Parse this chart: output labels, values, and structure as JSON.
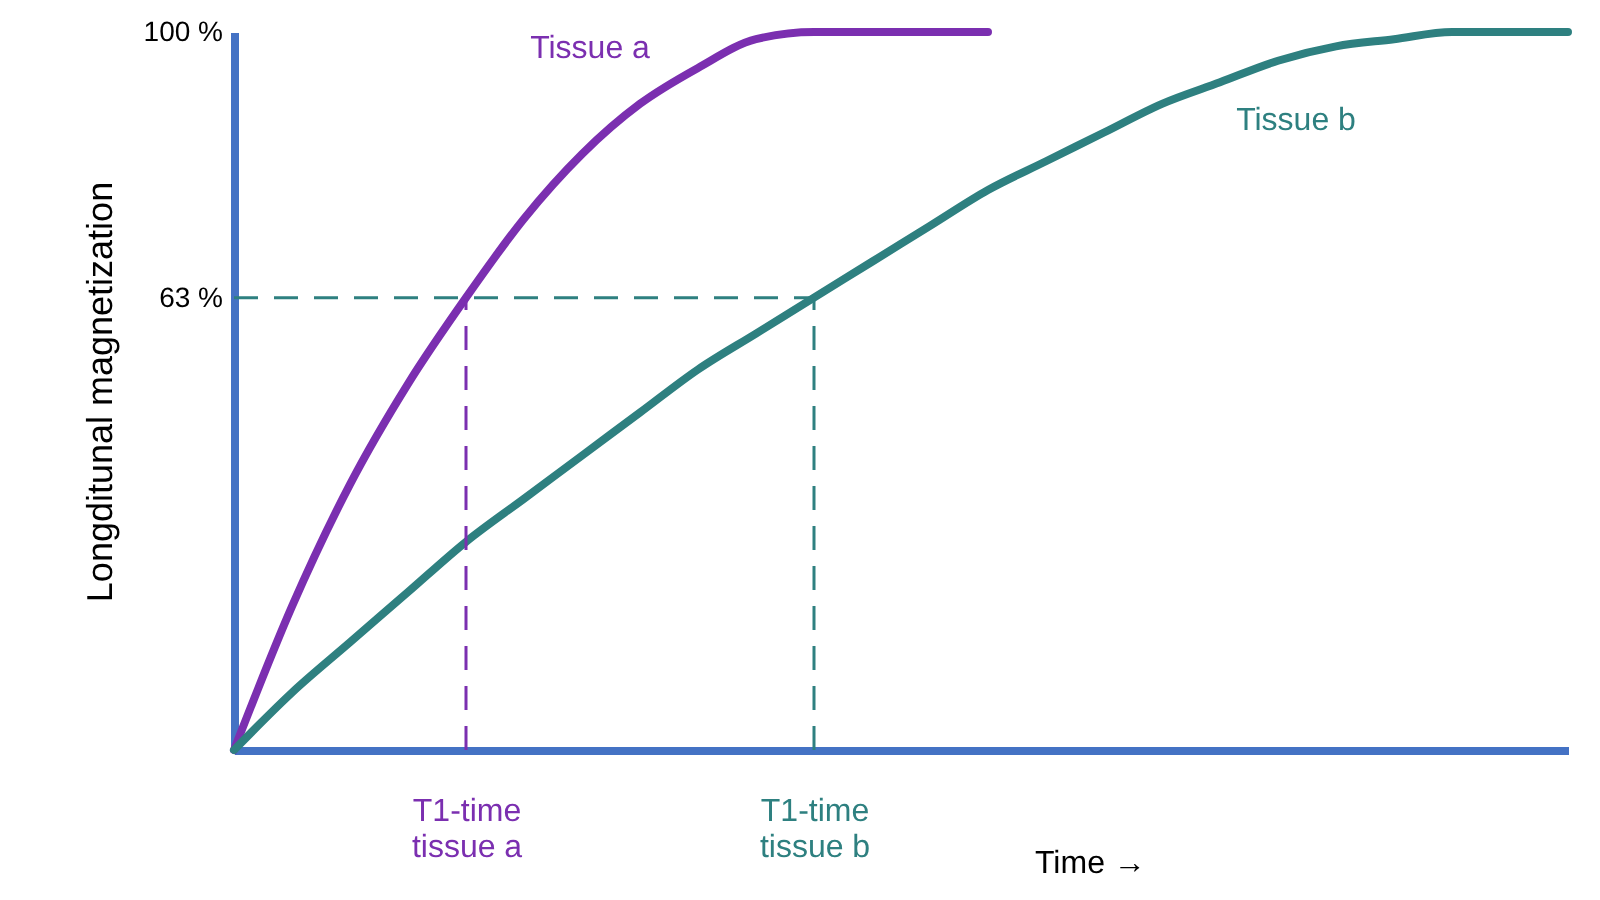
{
  "chart_data": {
    "type": "line",
    "ylabel": "Longditunal magnetization",
    "xlabel": "Time →",
    "categories": [
      null,
      null,
      null,
      null,
      "T1-time tissue a",
      null,
      null,
      null,
      null,
      null,
      "T1-time tissue b",
      null,
      null,
      null,
      null,
      null,
      null,
      null,
      null,
      null,
      null,
      null,
      null,
      null
    ],
    "ylim": [
      0,
      100
    ],
    "yticks": [
      {
        "value": 63,
        "label": "63 %"
      },
      {
        "value": 100,
        "label": "100 %"
      }
    ],
    "series": [
      {
        "name": "Tissue a",
        "color": "#7b2fb0",
        "values": [
          0,
          20,
          37,
          51,
          63,
          74,
          83,
          90,
          95,
          99,
          100,
          100,
          100,
          100,
          null,
          null,
          null,
          null,
          null,
          null,
          null,
          null,
          null,
          null
        ]
      },
      {
        "name": "Tissue b",
        "color": "#2e8080",
        "values": [
          0,
          8,
          15,
          22,
          29,
          35,
          41,
          47,
          53,
          58,
          63,
          68,
          73,
          78,
          82,
          86,
          90,
          93,
          96,
          98,
          99,
          100,
          100,
          100
        ]
      }
    ],
    "ref_lines": [
      {
        "axis": "y",
        "value": 63,
        "color": "#2e8080",
        "line_style": "dashed"
      },
      {
        "axis": "x",
        "value": "T1-time tissue a",
        "color": "#7b2fb0",
        "line_style": "dashed"
      },
      {
        "axis": "x",
        "value": "T1-time tissue b",
        "color": "#2e8080",
        "line_style": "dashed"
      }
    ],
    "marker": "none",
    "line_style": "solid",
    "grid": false
  }
}
